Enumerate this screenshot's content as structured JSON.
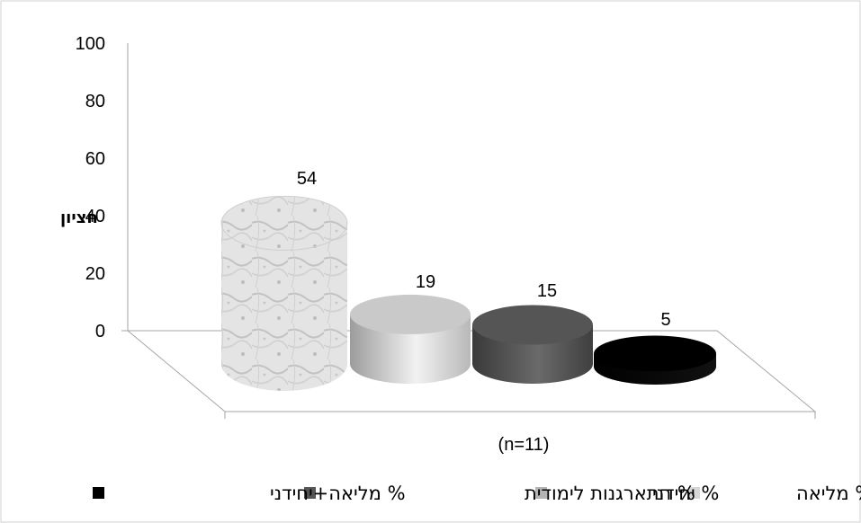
{
  "chart_data": {
    "type": "bar",
    "style": "3d-cylinder",
    "ylabel": "חציון",
    "xlabel": "(n=11)",
    "ylim": [
      0,
      100
    ],
    "yticks": [
      "0",
      "20",
      "40",
      "60",
      "80",
      "100"
    ],
    "grid": false,
    "legend_position": "bottom",
    "series": [
      {
        "name": "% מליאה",
        "values": [
          54
        ],
        "label": "54",
        "color": "#d6d6d6"
      },
      {
        "name": "% יחידני",
        "values": [
          19
        ],
        "label": "19",
        "color": "#b4b4b4"
      },
      {
        "name": "% התארגנות לימודית",
        "values": [
          15
        ],
        "label": "15",
        "color": "#555555"
      },
      {
        "name": "% מליאה+יחידני",
        "values": [
          5
        ],
        "label": "5",
        "color": "#000000"
      }
    ]
  }
}
